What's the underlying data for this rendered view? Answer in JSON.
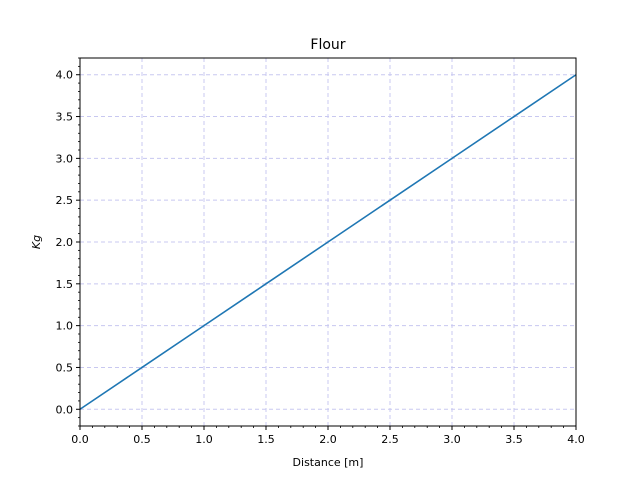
{
  "chart_data": {
    "type": "line",
    "title": "Flour",
    "xlabel": "Distance [m]",
    "ylabel": "Kg",
    "xlim": [
      0,
      4
    ],
    "ylim": [
      -0.2,
      4.2
    ],
    "x_ticks": [
      0.0,
      0.5,
      1.0,
      1.5,
      2.0,
      2.5,
      3.0,
      3.5,
      4.0
    ],
    "y_ticks": [
      0.0,
      0.5,
      1.0,
      1.5,
      2.0,
      2.5,
      3.0,
      3.5,
      4.0
    ],
    "x_tick_labels": [
      "0.0",
      "0.5",
      "1.0",
      "1.5",
      "2.0",
      "2.5",
      "3.0",
      "3.5",
      "4.0"
    ],
    "y_tick_labels": [
      "0.0",
      "0.5",
      "1.0",
      "1.5",
      "2.0",
      "2.5",
      "3.0",
      "3.5",
      "4.0"
    ],
    "grid": true,
    "grid_style": "dashed",
    "grid_color": "#c8c8f0",
    "legend": "none",
    "series": [
      {
        "color": "#1f77b4",
        "x": [
          0,
          0.5,
          1.0,
          1.5,
          2.0,
          2.5,
          3.0,
          3.5,
          4.0
        ],
        "y": [
          0,
          0.5,
          1.0,
          1.5,
          2.0,
          2.5,
          3.0,
          3.5,
          4.0
        ]
      }
    ]
  }
}
